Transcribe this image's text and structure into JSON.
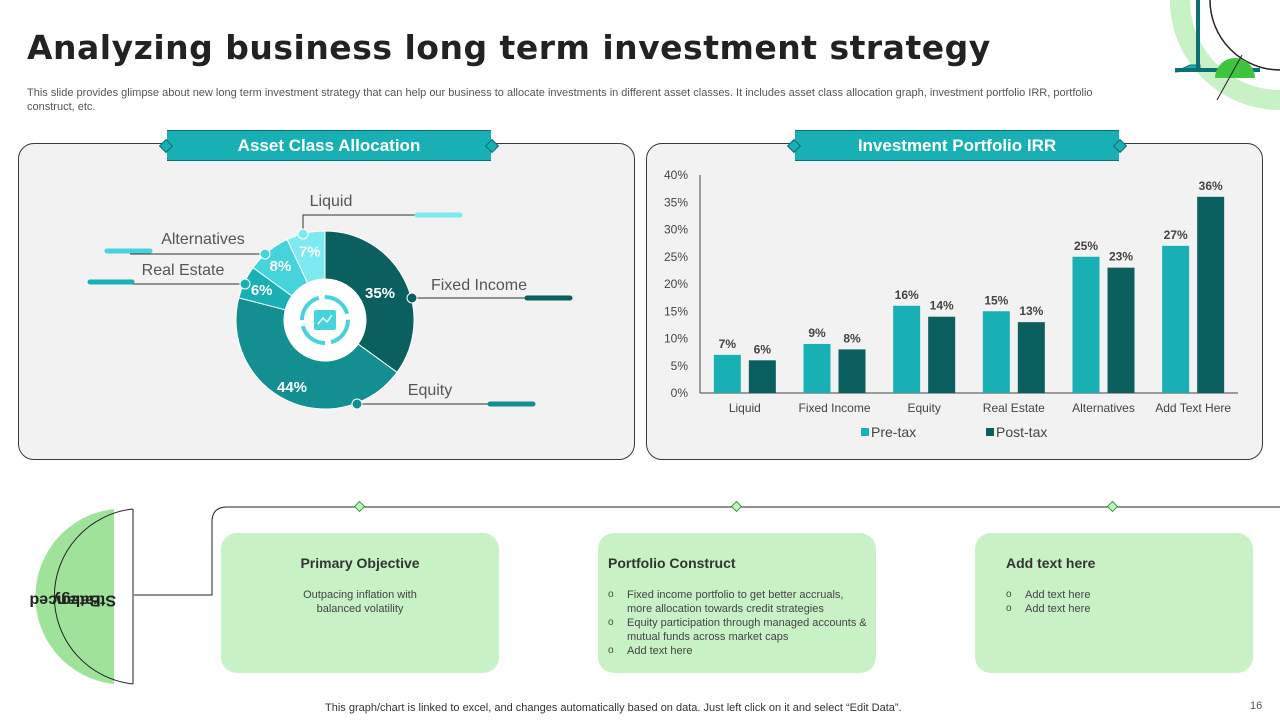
{
  "page": {
    "title": "Analyzing business long term investment strategy",
    "subtitle": "This slide provides glimpse about new long term investment strategy that can help our business to allocate investments in different asset classes. It includes asset class allocation graph, investment portfolio IRR, portfolio construct, etc.",
    "footnote": "This graph/chart is linked to excel,  and changes automatically based on data. Just left click on it and select “Edit Data”.",
    "page_number": "16"
  },
  "colors": {
    "teal": "#19b0b5",
    "dark_teal": "#0c5f5f",
    "light_green": "#c8f1c5",
    "green_accent": "#3ec43e"
  },
  "chart_data": [
    {
      "type": "pie",
      "variant": "donut",
      "title": "Asset Class Allocation",
      "categories": [
        "Fixed Income",
        "Equity",
        "Real Estate",
        "Alternatives",
        "Liquid"
      ],
      "values": [
        35,
        44,
        6,
        8,
        7
      ],
      "labels": [
        "35%",
        "44%",
        "6%",
        "8%",
        "7%"
      ],
      "colors": [
        "#0c5f5f",
        "#138f91",
        "#19b0b5",
        "#45d4dc",
        "#7ceaf0"
      ],
      "center_icon": "chart-icon"
    },
    {
      "type": "bar",
      "title": "Investment Portfolio IRR",
      "categories": [
        "Liquid",
        "Fixed Income",
        "Equity",
        "Real Estate",
        "Alternatives",
        "Add Text Here"
      ],
      "series": [
        {
          "name": "Pre-tax",
          "values": [
            7,
            9,
            16,
            15,
            25,
            27
          ],
          "labels": [
            "7%",
            "9%",
            "16%",
            "15%",
            "25%",
            "27%"
          ],
          "color": "#19b0b5"
        },
        {
          "name": "Post-tax",
          "values": [
            6,
            8,
            14,
            13,
            23,
            36
          ],
          "labels": [
            "6%",
            "8%",
            "14%",
            "13%",
            "23%",
            "36%"
          ],
          "color": "#0c5f5f"
        }
      ],
      "ylim": [
        0,
        40
      ],
      "yticks": [
        0,
        5,
        10,
        15,
        20,
        25,
        30,
        35,
        40
      ],
      "ytick_labels": [
        "0%",
        "5%",
        "10%",
        "15%",
        "20%",
        "25%",
        "30%",
        "35%",
        "40%"
      ],
      "legend": "bottom",
      "xlabel": "",
      "ylabel": ""
    }
  ],
  "strategy": {
    "label_line1": "Balanced",
    "label_line2": "Strategy",
    "cards": [
      {
        "title": "Primary Objective",
        "text": "Outpacing inflation with balanced volatility"
      },
      {
        "title": "Portfolio Construct",
        "bullets": [
          "Fixed income portfolio to get better accruals, more allocation towards credit strategies",
          "Equity participation through managed accounts & mutual funds across market caps",
          "Add text here"
        ]
      },
      {
        "title": "Add text here",
        "bullets": [
          "Add text here",
          "Add text here"
        ]
      }
    ]
  }
}
